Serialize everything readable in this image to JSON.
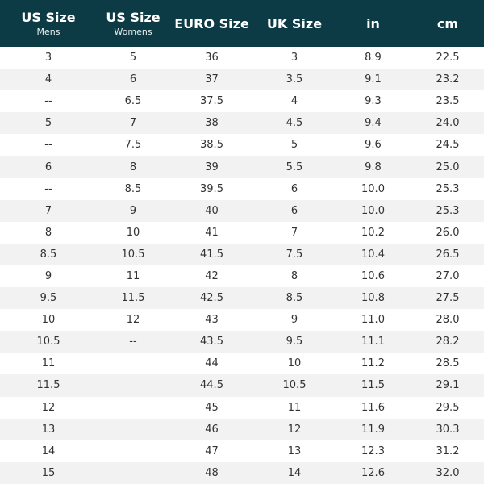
{
  "header": {
    "columns": [
      {
        "title": "US Size",
        "subtitle": "Mens"
      },
      {
        "title": "US Size",
        "subtitle": "Womens"
      },
      {
        "title": "EURO Size"
      },
      {
        "title": "UK Size"
      },
      {
        "title": "in"
      },
      {
        "title": "cm"
      }
    ]
  },
  "table": {
    "rows": [
      [
        "3",
        "5",
        "36",
        "3",
        "8.9",
        "22.5"
      ],
      [
        "4",
        "6",
        "37",
        "3.5",
        "9.1",
        "23.2"
      ],
      [
        "--",
        "6.5",
        "37.5",
        "4",
        "9.3",
        "23.5"
      ],
      [
        "5",
        "7",
        "38",
        "4.5",
        "9.4",
        "24.0"
      ],
      [
        "--",
        "7.5",
        "38.5",
        "5",
        "9.6",
        "24.5"
      ],
      [
        "6",
        "8",
        "39",
        "5.5",
        "9.8",
        "25.0"
      ],
      [
        "--",
        "8.5",
        "39.5",
        "6",
        "10.0",
        "25.3"
      ],
      [
        "7",
        "9",
        "40",
        "6",
        "10.0",
        "25.3"
      ],
      [
        "8",
        "10",
        "41",
        "7",
        "10.2",
        "26.0"
      ],
      [
        "8.5",
        "10.5",
        "41.5",
        "7.5",
        "10.4",
        "26.5"
      ],
      [
        "9",
        "11",
        "42",
        "8",
        "10.6",
        "27.0"
      ],
      [
        "9.5",
        "11.5",
        "42.5",
        "8.5",
        "10.8",
        "27.5"
      ],
      [
        "10",
        "12",
        "43",
        "9",
        "11.0",
        "28.0"
      ],
      [
        "10.5",
        "--",
        "43.5",
        "9.5",
        "11.1",
        "28.2"
      ],
      [
        "11",
        null,
        "44",
        "10",
        "11.2",
        "28.5"
      ],
      [
        "11.5",
        null,
        "44.5",
        "10.5",
        "11.5",
        "29.1"
      ],
      [
        "12",
        null,
        "45",
        "11",
        "11.6",
        "29.5"
      ],
      [
        "13",
        null,
        "46",
        "12",
        "11.9",
        "30.3"
      ],
      [
        "14",
        null,
        "47",
        "13",
        "12.3",
        "31.2"
      ],
      [
        "15",
        null,
        "48",
        "14",
        "12.6",
        "32.0"
      ]
    ]
  }
}
